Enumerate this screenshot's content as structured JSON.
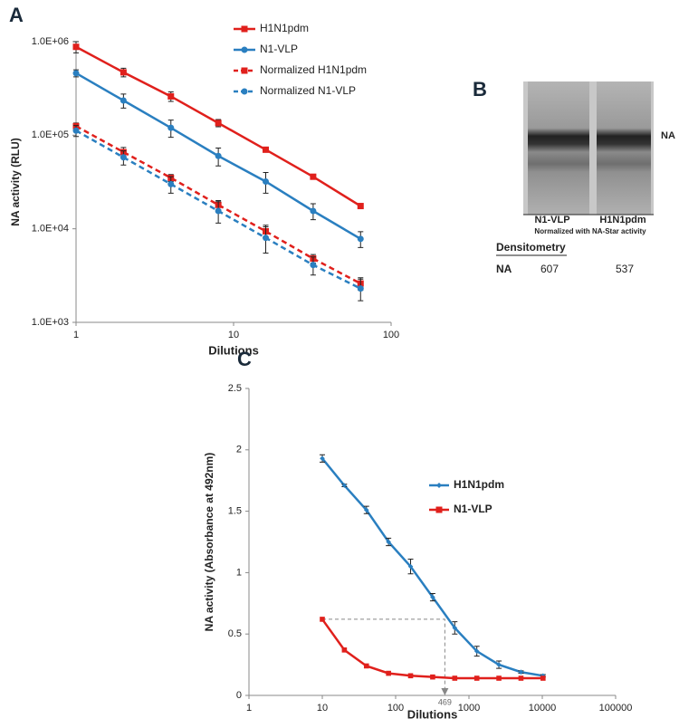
{
  "chart_data": [
    {
      "type": "line",
      "panel_label": "A",
      "x_label": "Dilutions",
      "y_label": "NA activity (RLU)",
      "xscale": "log",
      "yscale": "log",
      "x": [
        1,
        2,
        4,
        8,
        16,
        32,
        64
      ],
      "xlim": [
        1,
        100
      ],
      "xticks": [
        1,
        10,
        100
      ],
      "ylim": [
        1000,
        1000000
      ],
      "yticks": [
        {
          "value": 1000,
          "label": "1.0E+03"
        },
        {
          "value": 10000,
          "label": "1.0E+04"
        },
        {
          "value": 100000,
          "label": "1.0E+05"
        },
        {
          "value": 1000000,
          "label": "1.0E+06"
        }
      ],
      "grid": false,
      "legend": "top-right",
      "series": [
        {
          "name": "H1N1pdm",
          "color": "#e0201c",
          "linestyle": "solid",
          "marker": "square",
          "values": [
            880000,
            470000,
            260000,
            135000,
            70000,
            36000,
            17500
          ],
          "errors": [
            120000,
            50000,
            30000,
            12000,
            3000,
            1500,
            1000
          ]
        },
        {
          "name": "N1-VLP",
          "color": "#2a7fc0",
          "linestyle": "solid",
          "marker": "circle",
          "values": [
            460000,
            235000,
            120000,
            60000,
            32000,
            15500,
            7800
          ],
          "errors": [
            40000,
            40000,
            25000,
            13000,
            8000,
            3000,
            1500
          ]
        },
        {
          "name": "Normalized H1N1pdm",
          "color": "#e0201c",
          "linestyle": "dashed",
          "marker": "square",
          "values": [
            125000,
            66000,
            35000,
            18000,
            9400,
            4800,
            2600
          ],
          "errors": [
            10000,
            8000,
            3000,
            2000,
            1500,
            500,
            400
          ]
        },
        {
          "name": "Normalized N1-VLP",
          "color": "#2a7fc0",
          "linestyle": "dashed",
          "marker": "circle",
          "values": [
            112000,
            58000,
            30000,
            15500,
            8000,
            4100,
            2300
          ],
          "errors": [
            15000,
            10000,
            6000,
            4000,
            2500,
            900,
            600
          ]
        }
      ]
    },
    {
      "type": "line",
      "panel_label": "C",
      "x_label": "Dilutions",
      "y_label": "NA activity (Absorbance at 492nm)",
      "xscale": "log",
      "x": [
        10,
        20,
        40,
        80,
        160,
        320,
        640,
        1280,
        2560,
        5120,
        10240
      ],
      "xlim": [
        1,
        100000
      ],
      "xticks": [
        1,
        10,
        100,
        1000,
        10000,
        100000
      ],
      "ylim": [
        0,
        2.5
      ],
      "yticks": [
        0,
        0.5,
        1,
        1.5,
        2,
        2.5
      ],
      "grid": false,
      "legend": "right",
      "series": [
        {
          "name": "H1N1pdm",
          "color": "#2a7fc0",
          "linestyle": "solid",
          "marker": "diamond",
          "values": [
            1.93,
            1.71,
            1.51,
            1.25,
            1.05,
            0.8,
            0.55,
            0.36,
            0.25,
            0.19,
            0.16
          ],
          "errors": [
            0.03,
            0.01,
            0.03,
            0.03,
            0.06,
            0.03,
            0.05,
            0.04,
            0.03,
            0.01,
            0.01
          ]
        },
        {
          "name": "N1-VLP",
          "color": "#e0201c",
          "linestyle": "solid",
          "marker": "square",
          "values": [
            0.62,
            0.37,
            0.24,
            0.18,
            0.16,
            0.15,
            0.14,
            0.14,
            0.14,
            0.14,
            0.14
          ]
        }
      ],
      "annotation": {
        "text": "469",
        "x": 469,
        "y": 0.62
      }
    }
  ],
  "blot": {
    "panel_label": "B",
    "band_label": "NA",
    "lanes": [
      "N1-VLP",
      "H1N1pdm"
    ],
    "caption": "Normalized with NA-Star activity",
    "table": {
      "title": "Densitometry",
      "rows": [
        [
          "NA",
          607,
          537
        ]
      ]
    }
  }
}
